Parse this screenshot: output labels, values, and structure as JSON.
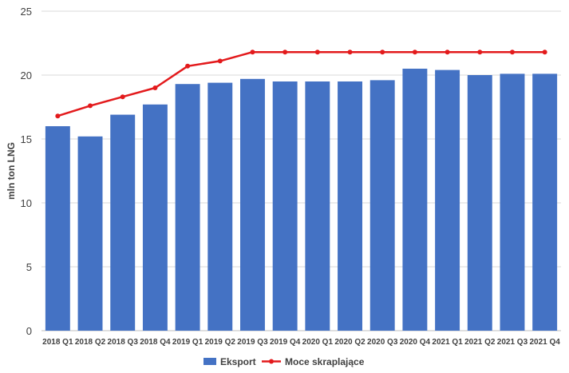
{
  "chart_data": {
    "type": "bar",
    "ylabel": "mln ton LNG",
    "xlabel": "",
    "ylim": [
      0,
      25
    ],
    "yticks": [
      0,
      5,
      10,
      15,
      20,
      25
    ],
    "grid": true,
    "legend_position": "bottom",
    "categories": [
      "2018 Q1",
      "2018 Q2",
      "2018 Q3",
      "2018 Q4",
      "2019 Q1",
      "2019 Q2",
      "2019 Q3",
      "2019 Q4",
      "2020 Q1",
      "2020 Q2",
      "2020 Q3",
      "2020 Q4",
      "2021 Q1",
      "2021 Q2",
      "2021 Q3",
      "2021 Q4"
    ],
    "series": [
      {
        "name": "Eksport",
        "type": "bar",
        "color": "#4472C4",
        "values": [
          16.0,
          15.2,
          16.9,
          17.7,
          19.3,
          19.4,
          19.7,
          19.5,
          19.5,
          19.5,
          19.6,
          20.5,
          20.4,
          20.0,
          20.1,
          20.1
        ]
      },
      {
        "name": "Moce skraplające",
        "type": "line",
        "color": "#E31A1C",
        "values": [
          16.8,
          17.6,
          18.3,
          19.0,
          20.7,
          21.1,
          21.8,
          21.8,
          21.8,
          21.8,
          21.8,
          21.8,
          21.8,
          21.8,
          21.8,
          21.8
        ]
      }
    ]
  }
}
